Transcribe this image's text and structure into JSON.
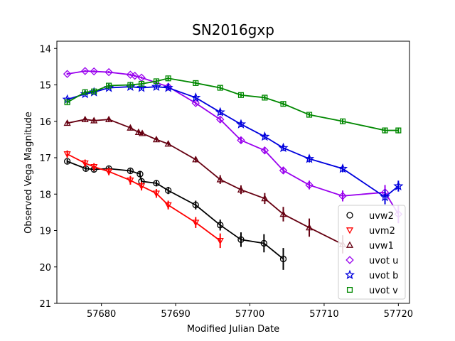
{
  "chart_data": {
    "type": "scatter",
    "title": "SN2016gxp",
    "xlabel": "Modified Julian Date",
    "ylabel": "Observed Vega Magnitude",
    "xlim": [
      57674,
      57721.5
    ],
    "ylim": [
      21,
      13.8
    ],
    "y_inverted": true,
    "xticks": [
      57680,
      57690,
      57700,
      57710,
      57720
    ],
    "yticks": [
      14,
      15,
      16,
      17,
      18,
      19,
      20,
      21
    ],
    "grid": false,
    "legend_position": "lower-right",
    "series": [
      {
        "name": "uvw2",
        "color": "#000000",
        "marker": "circle",
        "x": [
          57675.4,
          57677.9,
          57679.0,
          57681.0,
          57683.9,
          57685.2,
          57685.4,
          57687.4,
          57689.0,
          57692.7,
          57696.0,
          57698.8,
          57701.9,
          57704.5
        ],
        "y": [
          17.1,
          17.3,
          17.32,
          17.3,
          17.36,
          17.45,
          17.65,
          17.7,
          17.9,
          18.3,
          18.85,
          19.25,
          19.35,
          19.78
        ],
        "err": [
          0.06,
          0.06,
          0.06,
          0.06,
          0.06,
          0.08,
          0.06,
          0.08,
          0.1,
          0.12,
          0.15,
          0.2,
          0.25,
          0.3
        ]
      },
      {
        "name": "uvm2",
        "color": "#ff0000",
        "marker": "triangle-down",
        "x": [
          57675.4,
          57677.8,
          57679.0,
          57681.0,
          57683.9,
          57685.4,
          57687.4,
          57689.0,
          57692.7,
          57696.0
        ],
        "y": [
          16.9,
          17.15,
          17.25,
          17.38,
          17.62,
          17.78,
          17.98,
          18.3,
          18.78,
          19.28
        ],
        "err": [
          0.1,
          0.1,
          0.1,
          0.1,
          0.12,
          0.12,
          0.12,
          0.12,
          0.15,
          0.2
        ]
      },
      {
        "name": "uvw1",
        "color": "#660011",
        "marker": "triangle-up",
        "x": [
          57675.4,
          57677.8,
          57679.0,
          57681.0,
          57683.9,
          57685.0,
          57685.5,
          57687.4,
          57689.0,
          57692.7,
          57696.0,
          57698.8,
          57702.0,
          57704.5,
          57708.0,
          57712.5
        ],
        "y": [
          16.05,
          15.95,
          15.98,
          15.95,
          16.18,
          16.3,
          16.33,
          16.5,
          16.62,
          17.05,
          17.6,
          17.88,
          18.12,
          18.55,
          18.92,
          19.38
        ],
        "err": [
          0.05,
          0.05,
          0.05,
          0.05,
          0.05,
          0.05,
          0.05,
          0.05,
          0.05,
          0.08,
          0.12,
          0.12,
          0.15,
          0.2,
          0.25,
          0.25
        ]
      },
      {
        "name": "uvot u",
        "color": "#9900ee",
        "marker": "diamond",
        "x": [
          57675.4,
          57677.8,
          57679.0,
          57681.0,
          57683.9,
          57684.5,
          57685.4,
          57689.0,
          57692.7,
          57696.0,
          57698.8,
          57702.0,
          57704.5,
          57708.0,
          57712.5,
          57718.2,
          57720.0
        ],
        "y": [
          14.7,
          14.62,
          14.63,
          14.65,
          14.72,
          14.75,
          14.8,
          15.05,
          15.5,
          15.95,
          16.52,
          16.8,
          17.35,
          17.75,
          18.05,
          17.95,
          18.55
        ],
        "err": [
          0.03,
          0.03,
          0.03,
          0.03,
          0.03,
          0.03,
          0.03,
          0.05,
          0.05,
          0.06,
          0.08,
          0.08,
          0.1,
          0.12,
          0.15,
          0.2,
          0.25
        ]
      },
      {
        "name": "uvot b",
        "color": "#0000dd",
        "marker": "star",
        "x": [
          57675.4,
          57677.8,
          57679.0,
          57681.0,
          57683.9,
          57685.4,
          57687.4,
          57689.0,
          57692.7,
          57696.0,
          57698.8,
          57702.0,
          57704.5,
          57708.0,
          57712.5,
          57718.2,
          57720.0
        ],
        "y": [
          15.4,
          15.25,
          15.2,
          15.08,
          15.05,
          15.08,
          15.05,
          15.08,
          15.35,
          15.75,
          16.08,
          16.42,
          16.73,
          17.03,
          17.3,
          18.08,
          17.78
        ],
        "err": [
          0.04,
          0.04,
          0.04,
          0.04,
          0.04,
          0.04,
          0.04,
          0.04,
          0.06,
          0.08,
          0.08,
          0.08,
          0.08,
          0.1,
          0.1,
          0.2,
          0.15
        ]
      },
      {
        "name": "uvot v",
        "color": "#008800",
        "marker": "square",
        "x": [
          57675.4,
          57677.8,
          57679.0,
          57681.0,
          57683.9,
          57685.4,
          57687.4,
          57689.0,
          57692.7,
          57696.0,
          57698.8,
          57702.0,
          57704.5,
          57708.0,
          57712.5,
          57718.2,
          57720.0
        ],
        "y": [
          15.48,
          15.2,
          15.18,
          15.02,
          15.0,
          14.97,
          14.9,
          14.82,
          14.95,
          15.08,
          15.28,
          15.35,
          15.52,
          15.82,
          16.0,
          16.25,
          16.25
        ],
        "err": [
          0.05,
          0.05,
          0.05,
          0.05,
          0.05,
          0.05,
          0.05,
          0.05,
          0.05,
          0.05,
          0.05,
          0.05,
          0.05,
          0.05,
          0.06,
          0.08,
          0.08
        ]
      }
    ]
  }
}
